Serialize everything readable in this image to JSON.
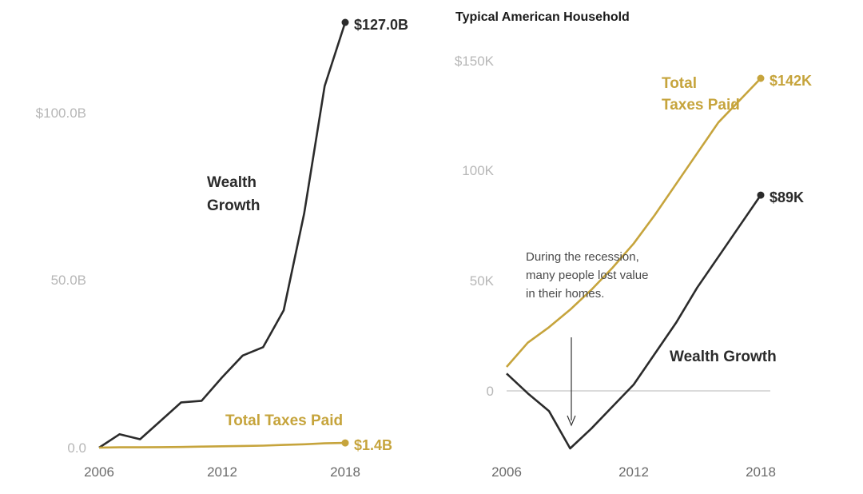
{
  "colors": {
    "wealth": "#2b2b2b",
    "taxes": "#c6a43c",
    "zero_line": "#cfcfcf"
  },
  "chart_data": [
    {
      "type": "line",
      "title": "",
      "x": [
        2006,
        2007,
        2008,
        2009,
        2010,
        2011,
        2012,
        2013,
        2014,
        2015,
        2016,
        2017,
        2018
      ],
      "xticks": [
        "2006",
        "2012",
        "2018"
      ],
      "yticks": [
        "0.0",
        "50.0B",
        "$100.0B"
      ],
      "ylim": [
        0,
        127
      ],
      "series": [
        {
          "name": "Wealth Growth",
          "label_lines": [
            "Wealth",
            "Growth"
          ],
          "values": [
            0,
            4,
            2.5,
            8,
            13.5,
            14,
            21,
            27.5,
            30,
            41,
            70,
            108,
            127
          ],
          "end_label": "$127.0B"
        },
        {
          "name": "Total Taxes Paid",
          "label_lines": [
            "Total Taxes Paid"
          ],
          "values": [
            0,
            0.1,
            0.1,
            0.15,
            0.2,
            0.3,
            0.4,
            0.5,
            0.6,
            0.8,
            1.0,
            1.3,
            1.4
          ],
          "end_label": "$1.4B"
        }
      ],
      "grid": false
    },
    {
      "type": "line",
      "title": "Typical American Household",
      "x": [
        2006,
        2007,
        2008,
        2009,
        2010,
        2011,
        2012,
        2013,
        2014,
        2015,
        2016,
        2017,
        2018
      ],
      "xticks": [
        "2006",
        "2012",
        "2018"
      ],
      "yticks": [
        "0",
        "50K",
        "100K",
        "$150K"
      ],
      "ylim": [
        -26,
        150
      ],
      "series": [
        {
          "name": "Total Taxes Paid",
          "label_lines": [
            "Total",
            "Taxes Paid"
          ],
          "values": [
            11,
            22,
            29,
            37,
            46,
            56,
            67,
            80,
            94,
            108,
            122,
            132,
            142
          ],
          "end_label": "$142K"
        },
        {
          "name": "Wealth Growth",
          "label_lines": [
            "Wealth Growth"
          ],
          "values": [
            8,
            -1,
            -9,
            -26,
            -17,
            -7,
            3,
            17,
            31,
            47,
            61,
            75,
            89
          ],
          "end_label": "$89K"
        }
      ],
      "annotation": {
        "lines": [
          "During the recession,",
          "many people lost value",
          "in their homes."
        ],
        "x": 2009
      },
      "grid": false
    }
  ]
}
